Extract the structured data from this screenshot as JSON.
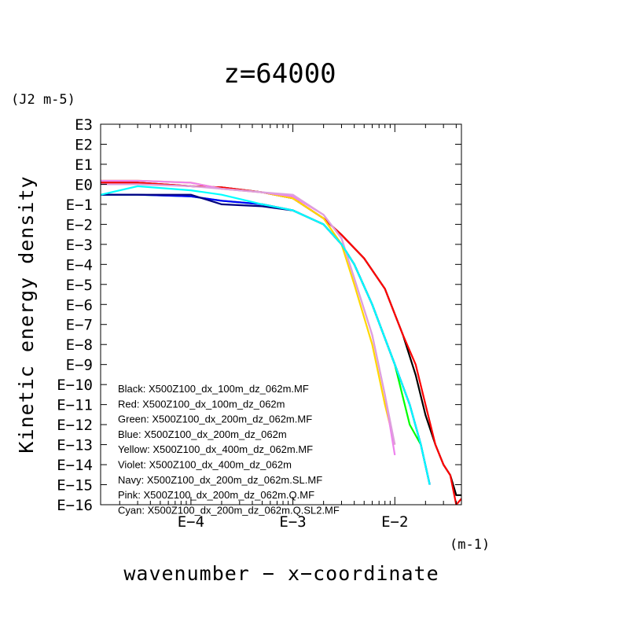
{
  "chart_data": {
    "type": "line",
    "title": "z=64000",
    "ylabel": "Kinetic energy density",
    "yunit": "(J2 m-5)",
    "xlabel": "wavenumber − x−coordinate",
    "xunit": "(m-1)",
    "xscale": "log",
    "yscale": "log",
    "xlim": [
      1.3e-05,
      0.045
    ],
    "ylim": [
      1e-16,
      1000
    ],
    "y_tick_labels": [
      "E3",
      "E2",
      "E1",
      "E0",
      "E−1",
      "E−2",
      "E−3",
      "E−4",
      "E−5",
      "E−6",
      "E−7",
      "E−8",
      "E−9",
      "E−10",
      "E−11",
      "E−12",
      "E−13",
      "E−14",
      "E−15",
      "E−16"
    ],
    "x_tick_labels": [
      "E−4",
      "E−3",
      "E−2"
    ],
    "legend_position": "bottom-left",
    "series": [
      {
        "name": "Black: X500Z100_dx_100m_dz_062m.MF",
        "color": "#000000",
        "x": [
          1.3e-05,
          3e-05,
          0.0001,
          0.0002,
          0.0005,
          0.001,
          0.002,
          0.003,
          0.005,
          0.008,
          0.012,
          0.016,
          0.02,
          0.025,
          0.03,
          0.035,
          0.04,
          0.045
        ],
        "y": [
          1.2,
          1.2,
          0.8,
          0.7,
          0.4,
          0.2,
          0.02,
          0.003,
          0.0002,
          6e-06,
          3e-08,
          3e-10,
          3e-12,
          1e-13,
          1e-14,
          3e-15,
          3e-16,
          3e-16
        ]
      },
      {
        "name": "Red: X500Z100_dx_100m_dz_062m",
        "color": "#ff0000",
        "x": [
          1.3e-05,
          3e-05,
          0.0001,
          0.0002,
          0.0005,
          0.001,
          0.002,
          0.003,
          0.005,
          0.008,
          0.012,
          0.016,
          0.02,
          0.025,
          0.03,
          0.035,
          0.04,
          0.045
        ],
        "y": [
          1.2,
          1.2,
          0.8,
          0.7,
          0.4,
          0.2,
          0.02,
          0.003,
          0.0002,
          6e-06,
          3e-08,
          1e-09,
          1e-11,
          1e-13,
          1e-14,
          3e-15,
          1e-16,
          2e-16
        ]
      },
      {
        "name": "Green: X500Z100_dx_200m_dz_062m.MF",
        "color": "#00ff00",
        "x": [
          1.3e-05,
          3e-05,
          0.0001,
          0.0002,
          0.0005,
          0.001,
          0.002,
          0.003,
          0.004,
          0.006,
          0.01,
          0.014,
          0.018
        ],
        "y": [
          0.3,
          0.3,
          0.25,
          0.15,
          0.1,
          0.05,
          0.01,
          0.001,
          0.0001,
          1e-06,
          1e-09,
          1e-12,
          1e-13
        ]
      },
      {
        "name": "Blue: X500Z100_dx_200m_dz_062m",
        "color": "#0000ff",
        "x": [
          1.3e-05,
          3e-05,
          0.0001,
          0.0002,
          0.0005,
          0.001,
          0.002,
          0.003,
          0.004,
          0.006,
          0.01,
          0.014,
          0.018,
          0.022
        ],
        "y": [
          0.3,
          0.3,
          0.25,
          0.15,
          0.1,
          0.05,
          0.01,
          0.001,
          0.0001,
          1e-06,
          1e-09,
          1e-11,
          1e-13,
          1e-15
        ]
      },
      {
        "name": "Yellow: X500Z100_dx_400m_dz_062m.MF",
        "color": "#ffd700",
        "x": [
          1.3e-05,
          3e-05,
          0.0001,
          0.0002,
          0.0005,
          0.001,
          0.002,
          0.003,
          0.004,
          0.006,
          0.008,
          0.01
        ],
        "y": [
          1.5,
          1.5,
          1.2,
          0.6,
          0.4,
          0.2,
          0.02,
          0.001,
          1e-05,
          1e-08,
          1e-11,
          1e-13
        ]
      },
      {
        "name": "Violet: X500Z100_dx_400m_dz_062m",
        "color": "#ee82ee",
        "x": [
          1.3e-05,
          3e-05,
          0.0001,
          0.0002,
          0.0005,
          0.001,
          0.002,
          0.003,
          0.004,
          0.006,
          0.008,
          0.01
        ],
        "y": [
          1.5,
          1.5,
          1.2,
          0.6,
          0.4,
          0.25,
          0.03,
          0.002,
          2e-05,
          3e-08,
          3e-11,
          3e-14
        ]
      },
      {
        "name": "Navy: X500Z100_dx_200m_dz_062m.SL.MF",
        "color": "#000080",
        "x": [
          1.3e-05,
          3e-05,
          0.0001,
          0.0002,
          0.0005,
          0.001,
          0.002,
          0.003,
          0.004,
          0.006,
          0.01,
          0.014,
          0.018,
          0.022
        ],
        "y": [
          0.3,
          0.3,
          0.3,
          0.1,
          0.08,
          0.05,
          0.01,
          0.001,
          0.0001,
          1e-06,
          1e-09,
          1e-11,
          1e-13,
          1e-15
        ]
      },
      {
        "name": "Pink: X500Z100_dx_200m_dz_062m.Q.MF",
        "color": "#dda0dd",
        "x": [
          1.3e-05,
          3e-05,
          0.0001,
          0.0002,
          0.0005,
          0.001,
          0.002,
          0.003,
          0.004,
          0.006,
          0.008,
          0.01
        ],
        "y": [
          1,
          1,
          0.8,
          0.6,
          0.4,
          0.3,
          0.03,
          0.002,
          2e-05,
          3e-08,
          3e-11,
          1e-13
        ]
      },
      {
        "name": "Cyan: X500Z100_dx_200m_dz_062m.Q.SL2.MF",
        "color": "#00ffff",
        "x": [
          1.3e-05,
          3e-05,
          0.0001,
          0.0002,
          0.0005,
          0.001,
          0.002,
          0.003,
          0.004,
          0.006,
          0.01,
          0.014,
          0.018,
          0.022
        ],
        "y": [
          0.3,
          0.8,
          0.5,
          0.3,
          0.1,
          0.05,
          0.01,
          0.001,
          0.0001,
          1e-06,
          1e-09,
          1e-11,
          1e-13,
          1e-15
        ]
      }
    ]
  }
}
